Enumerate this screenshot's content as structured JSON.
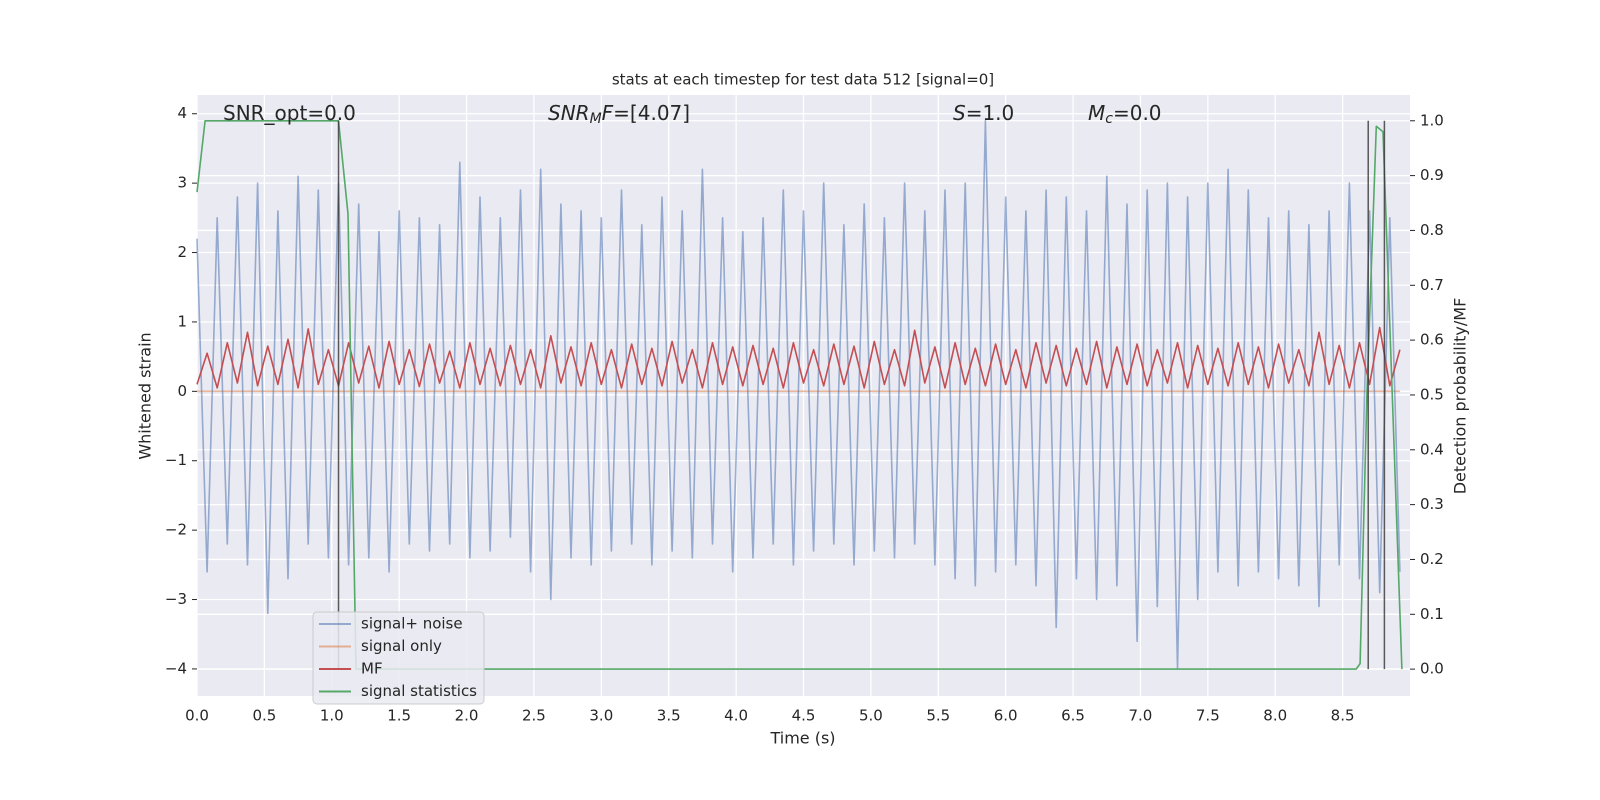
{
  "chart_data": {
    "type": "line",
    "title": "stats at each timestep for test data 512 [signal=0]",
    "xlabel": "Time (s)",
    "ylabel": "Whitened strain",
    "y2label": "Detection probability/MF",
    "xlim": [
      0,
      9.0
    ],
    "ylim": [
      -4.39,
      4.27
    ],
    "y2lim": [
      -0.049,
      1.047
    ],
    "xticks": [
      {
        "value": 0,
        "label": "0.0"
      },
      0.5,
      {
        "value": 1,
        "label": "1.0"
      },
      1.5,
      {
        "value": 2,
        "label": "2.0"
      },
      2.5,
      {
        "value": 3,
        "label": "3.0"
      },
      3.5,
      {
        "value": 4,
        "label": "4.0"
      },
      4.5,
      {
        "value": 5,
        "label": "5.0"
      },
      5.5,
      {
        "value": 6,
        "label": "6.0"
      },
      6.5,
      {
        "value": 7,
        "label": "7.0"
      },
      7.5,
      {
        "value": 8,
        "label": "8.0"
      },
      8.5
    ],
    "yticks": [
      {
        "value": -4,
        "label": "−4"
      },
      {
        "value": -3,
        "label": "−3"
      },
      {
        "value": -2,
        "label": "−2"
      },
      {
        "value": -1,
        "label": "−1"
      },
      0,
      1,
      2,
      3,
      4
    ],
    "y2ticks": [
      {
        "value": 0,
        "label": "0.0"
      },
      0.1,
      0.2,
      0.3,
      0.4,
      0.5,
      0.6,
      0.7,
      0.8,
      0.9,
      {
        "value": 1,
        "label": "1.0"
      }
    ],
    "grid": true,
    "legend": "lower left",
    "x": [
      0,
      0.075,
      0.15,
      0.225,
      0.3,
      0.375,
      0.45,
      0.525,
      0.6,
      0.675,
      0.75,
      0.825,
      0.9,
      0.975,
      1.05,
      1.125,
      1.2,
      1.275,
      1.35,
      1.425,
      1.5,
      1.575,
      1.65,
      1.725,
      1.8,
      1.875,
      1.95,
      2.025,
      2.1,
      2.175,
      2.25,
      2.325,
      2.4,
      2.475,
      2.55,
      2.625,
      2.7,
      2.775,
      2.85,
      2.925,
      3,
      3.075,
      3.15,
      3.225,
      3.3,
      3.375,
      3.45,
      3.525,
      3.6,
      3.675,
      3.75,
      3.825,
      3.9,
      3.975,
      4.05,
      4.125,
      4.2,
      4.275,
      4.35,
      4.425,
      4.5,
      4.575,
      4.65,
      4.725,
      4.8,
      4.875,
      4.95,
      5.025,
      5.1,
      5.175,
      5.25,
      5.325,
      5.4,
      5.475,
      5.55,
      5.625,
      5.7,
      5.775,
      5.85,
      5.925,
      6,
      6.075,
      6.15,
      6.225,
      6.3,
      6.375,
      6.45,
      6.525,
      6.6,
      6.675,
      6.75,
      6.825,
      6.9,
      6.975,
      7.05,
      7.125,
      7.2,
      7.275,
      7.35,
      7.425,
      7.5,
      7.575,
      7.65,
      7.725,
      7.8,
      7.875,
      7.95,
      8.025,
      8.1,
      8.175,
      8.25,
      8.325,
      8.4,
      8.475,
      8.55,
      8.625,
      8.7,
      8.775,
      8.85,
      8.925
    ],
    "series": [
      {
        "name": "signal+ noise",
        "color": "#4c72b0",
        "opacity": 0.55,
        "values": [
          2.2,
          -2.6,
          2.5,
          -2.2,
          2.8,
          -2.5,
          3.0,
          -3.2,
          2.6,
          -2.7,
          3.1,
          -2.2,
          2.9,
          -2.4,
          3.0,
          -2.5,
          2.7,
          -2.4,
          2.3,
          -2.6,
          2.6,
          -2.2,
          2.5,
          -2.3,
          2.4,
          -2.2,
          3.3,
          -2.4,
          2.8,
          -2.3,
          2.5,
          -2.1,
          2.9,
          -2.6,
          3.2,
          -3.0,
          2.7,
          -2.4,
          2.6,
          -2.5,
          2.5,
          -2.3,
          2.9,
          -2.2,
          2.4,
          -2.5,
          2.8,
          -2.3,
          2.6,
          -2.4,
          3.2,
          -2.2,
          2.5,
          -2.6,
          2.3,
          -2.4,
          2.5,
          -2.2,
          2.9,
          -2.5,
          2.6,
          -2.3,
          3.0,
          -2.2,
          2.4,
          -2.5,
          2.7,
          -2.3,
          2.5,
          -2.4,
          3.0,
          -2.2,
          2.6,
          -2.5,
          2.9,
          -2.7,
          3.0,
          -2.8,
          3.9,
          -2.6,
          2.8,
          -2.5,
          2.6,
          -2.8,
          2.9,
          -3.4,
          2.8,
          -2.7,
          2.6,
          -3.0,
          3.1,
          -2.8,
          2.7,
          -3.6,
          2.9,
          -3.1,
          3.0,
          -4.0,
          2.8,
          -3.0,
          3.0,
          -2.6,
          3.2,
          -2.8,
          2.9,
          -2.6,
          2.5,
          -2.7,
          2.6,
          -2.8,
          2.4,
          -3.1,
          2.6,
          -2.5,
          3.0,
          -2.7,
          2.6,
          -2.9,
          2.5,
          -2.6
        ]
      },
      {
        "name": "signal only",
        "color": "#dd8452",
        "opacity": 0.6,
        "x": [
          0,
          8.925
        ],
        "values": [
          0,
          0
        ]
      },
      {
        "name": "MF",
        "color": "#c44e52",
        "opacity": 1,
        "values": [
          0.1,
          0.55,
          0.05,
          0.7,
          0.12,
          0.85,
          0.08,
          0.65,
          0.1,
          0.75,
          0.05,
          0.9,
          0.1,
          0.6,
          0.08,
          0.7,
          0.12,
          0.65,
          0.05,
          0.72,
          0.1,
          0.6,
          0.07,
          0.68,
          0.12,
          0.58,
          0.05,
          0.7,
          0.1,
          0.62,
          0.08,
          0.66,
          0.1,
          0.6,
          0.05,
          0.8,
          0.12,
          0.64,
          0.08,
          0.7,
          0.1,
          0.6,
          0.05,
          0.68,
          0.1,
          0.62,
          0.08,
          0.72,
          0.12,
          0.6,
          0.05,
          0.7,
          0.1,
          0.64,
          0.08,
          0.66,
          0.1,
          0.62,
          0.05,
          0.7,
          0.12,
          0.6,
          0.08,
          0.68,
          0.1,
          0.65,
          0.05,
          0.72,
          0.1,
          0.6,
          0.08,
          0.88,
          0.12,
          0.64,
          0.05,
          0.7,
          0.1,
          0.62,
          0.08,
          0.68,
          0.1,
          0.6,
          0.05,
          0.7,
          0.12,
          0.66,
          0.08,
          0.62,
          0.1,
          0.72,
          0.05,
          0.64,
          0.1,
          0.68,
          0.08,
          0.6,
          0.12,
          0.7,
          0.05,
          0.66,
          0.1,
          0.62,
          0.08,
          0.7,
          0.1,
          0.64,
          0.05,
          0.68,
          0.12,
          0.6,
          0.08,
          0.85,
          0.1,
          0.66,
          0.05,
          0.7,
          0.1,
          0.92,
          0.08,
          0.6
        ]
      },
      {
        "name": "signal statistics",
        "color": "#55a868",
        "opacity": 1,
        "axis": "y2",
        "x": [
          0,
          0.06,
          1.05,
          1.12,
          1.18,
          8.6,
          8.63,
          8.68,
          8.75,
          8.8,
          8.94
        ],
        "values": [
          0.87,
          1.0,
          1.0,
          0.83,
          0.0,
          0.0,
          0.01,
          0.5,
          0.99,
          0.98,
          0.0
        ]
      }
    ],
    "vlines": {
      "x": [
        1.05,
        8.69,
        8.81
      ],
      "ymin": 0,
      "ymax": 1,
      "color": "#333333"
    },
    "annotations": [
      {
        "tail": "SNR_opt=0.0"
      },
      {
        "main": "SNR",
        "sub": "M",
        "italic_tail": "F",
        "tail": "=[4.07]"
      },
      {
        "main": "S",
        "tail": "=1.0"
      },
      {
        "main": "M",
        "sub": "c",
        "tail": "=0.0"
      }
    ]
  }
}
